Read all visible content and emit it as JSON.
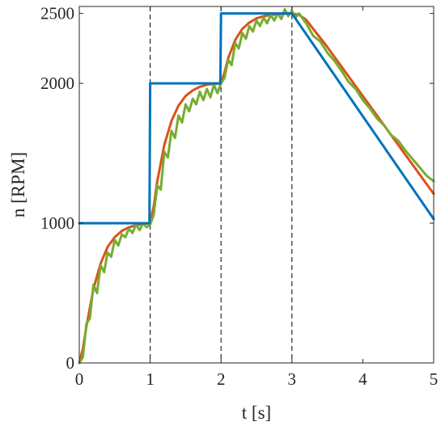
{
  "chart_data": {
    "type": "line",
    "xlabel": "t [s]",
    "ylabel": "n [RPM]",
    "xlim": [
      0,
      5
    ],
    "ylim": [
      0,
      2550
    ],
    "x_ticks": [
      0,
      1,
      2,
      3,
      4,
      5
    ],
    "y_ticks": [
      0,
      1000,
      2000,
      2500
    ],
    "grid": false,
    "vertical_dashed_lines_at": [
      1,
      2,
      3
    ],
    "series": [
      {
        "color": "#0072BD",
        "style": "step-reference",
        "x": [
          0,
          0.99,
          1.0,
          1.99,
          2.0,
          2.99,
          3.0,
          5.0
        ],
        "y": [
          1000,
          1000,
          2000,
          2000,
          2500,
          2500,
          2500,
          1030
        ]
      },
      {
        "color": "#D95319",
        "style": "smooth-response",
        "x": [
          0,
          0.05,
          0.1,
          0.2,
          0.3,
          0.4,
          0.5,
          0.6,
          0.7,
          0.8,
          0.9,
          1.0,
          1.05,
          1.1,
          1.2,
          1.3,
          1.4,
          1.5,
          1.6,
          1.7,
          1.8,
          1.9,
          2.0,
          2.05,
          2.1,
          2.2,
          2.3,
          2.4,
          2.5,
          2.6,
          2.7,
          2.8,
          2.9,
          3.0,
          3.1,
          3.2,
          3.5,
          4.0,
          4.5,
          5.0
        ],
        "y": [
          0,
          100,
          260,
          530,
          710,
          830,
          900,
          945,
          970,
          985,
          995,
          1000,
          1120,
          1300,
          1560,
          1730,
          1840,
          1910,
          1950,
          1975,
          1990,
          1996,
          2000,
          2080,
          2180,
          2310,
          2390,
          2435,
          2465,
          2480,
          2490,
          2495,
          2498,
          2500,
          2490,
          2455,
          2260,
          1910,
          1560,
          1210
        ]
      },
      {
        "color": "#77AC30",
        "style": "noisy-measurement",
        "x": [
          0,
          0.05,
          0.1,
          0.15,
          0.2,
          0.25,
          0.3,
          0.35,
          0.4,
          0.45,
          0.5,
          0.55,
          0.6,
          0.65,
          0.7,
          0.75,
          0.8,
          0.85,
          0.9,
          0.95,
          1.0,
          1.05,
          1.1,
          1.15,
          1.2,
          1.25,
          1.3,
          1.35,
          1.4,
          1.45,
          1.5,
          1.55,
          1.6,
          1.65,
          1.7,
          1.75,
          1.8,
          1.85,
          1.9,
          1.95,
          2.0,
          2.05,
          2.1,
          2.15,
          2.2,
          2.25,
          2.3,
          2.35,
          2.4,
          2.45,
          2.5,
          2.55,
          2.6,
          2.65,
          2.7,
          2.75,
          2.8,
          2.85,
          2.9,
          2.95,
          3.0,
          3.05,
          3.1,
          3.2,
          3.3,
          3.4,
          3.5,
          3.6,
          3.7,
          3.8,
          3.9,
          4.0,
          4.1,
          4.2,
          4.3,
          4.4,
          4.5,
          4.6,
          4.7,
          4.8,
          4.9,
          5.0
        ],
        "y": [
          0,
          40,
          280,
          320,
          560,
          500,
          700,
          650,
          790,
          760,
          880,
          840,
          920,
          900,
          960,
          930,
          990,
          950,
          1000,
          970,
          990,
          1060,
          1270,
          1240,
          1510,
          1470,
          1660,
          1610,
          1770,
          1720,
          1850,
          1800,
          1890,
          1850,
          1940,
          1880,
          1960,
          1900,
          1990,
          1930,
          2000,
          2040,
          2170,
          2130,
          2290,
          2250,
          2360,
          2320,
          2410,
          2370,
          2450,
          2410,
          2470,
          2430,
          2490,
          2450,
          2500,
          2460,
          2530,
          2480,
          2520,
          2470,
          2500,
          2430,
          2340,
          2300,
          2220,
          2160,
          2090,
          2010,
          1960,
          1880,
          1820,
          1750,
          1700,
          1630,
          1590,
          1520,
          1460,
          1400,
          1340,
          1300
        ]
      }
    ]
  }
}
